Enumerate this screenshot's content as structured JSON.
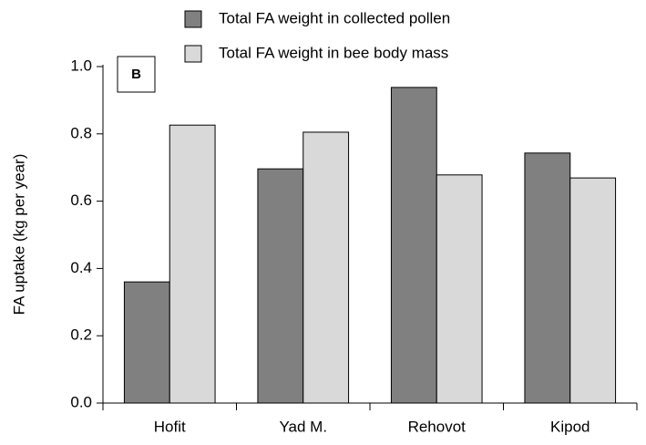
{
  "chart_data": {
    "type": "bar",
    "panel_label": "B",
    "y_label": "FA uptake (kg per year)",
    "categories": [
      "Hofit",
      "Yad M.",
      "Rehovot",
      "Kipod"
    ],
    "series": [
      {
        "name": "Total FA weight in collected pollen",
        "color": "#808080",
        "values": [
          0.36,
          0.696,
          0.938,
          0.743
        ]
      },
      {
        "name": "Total FA weight in bee body mass",
        "color": "#d9d9d9",
        "values": [
          0.826,
          0.805,
          0.678,
          0.669
        ]
      }
    ],
    "ylim": [
      0,
      1.0
    ],
    "yticks": [
      {
        "value": 0,
        "label": "0.0"
      },
      0.2,
      0.4,
      0.6,
      0.8,
      {
        "value": 1.0,
        "label": "1.0"
      }
    ],
    "legend": "top"
  }
}
